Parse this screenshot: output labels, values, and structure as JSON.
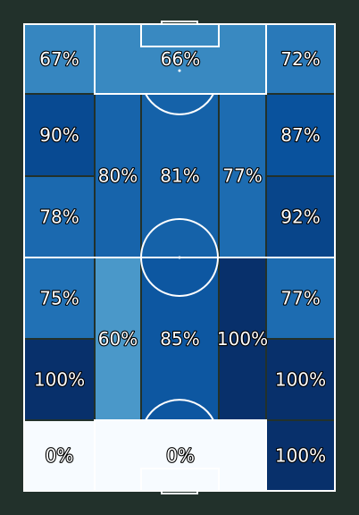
{
  "chart_data": {
    "type": "heatmap",
    "colormap": "Blues",
    "value_range": [
      0,
      100
    ],
    "value_unit": "%",
    "background_color": "#22312b",
    "line_color": "#ffffff",
    "zones": [
      {
        "id": "top-left-wide",
        "label": "67%",
        "value": 67
      },
      {
        "id": "top-box",
        "label": "66%",
        "value": 66
      },
      {
        "id": "top-right-wide",
        "label": "72%",
        "value": 72
      },
      {
        "id": "upper-left-wing-a",
        "label": "90%",
        "value": 90
      },
      {
        "id": "upper-left-wing-b",
        "label": "78%",
        "value": 78
      },
      {
        "id": "upper-left-halfspace",
        "label": "80%",
        "value": 80
      },
      {
        "id": "upper-center",
        "label": "81%",
        "value": 81
      },
      {
        "id": "upper-right-halfspace",
        "label": "77%",
        "value": 77
      },
      {
        "id": "upper-right-wing-a",
        "label": "87%",
        "value": 87
      },
      {
        "id": "upper-right-wing-b",
        "label": "92%",
        "value": 92
      },
      {
        "id": "lower-left-wing-a",
        "label": "75%",
        "value": 75
      },
      {
        "id": "lower-left-wing-b",
        "label": "100%",
        "value": 100
      },
      {
        "id": "lower-left-halfspace",
        "label": "60%",
        "value": 60
      },
      {
        "id": "lower-center",
        "label": "85%",
        "value": 85
      },
      {
        "id": "lower-right-halfspace",
        "label": "100%",
        "value": 100
      },
      {
        "id": "lower-right-wing-a",
        "label": "77%",
        "value": 77
      },
      {
        "id": "lower-right-wing-b",
        "label": "100%",
        "value": 100
      },
      {
        "id": "bottom-left-wide",
        "label": "0%",
        "value": 0
      },
      {
        "id": "bottom-box",
        "label": "0%",
        "value": 0
      },
      {
        "id": "bottom-right-wide",
        "label": "100%",
        "value": 100
      }
    ]
  }
}
